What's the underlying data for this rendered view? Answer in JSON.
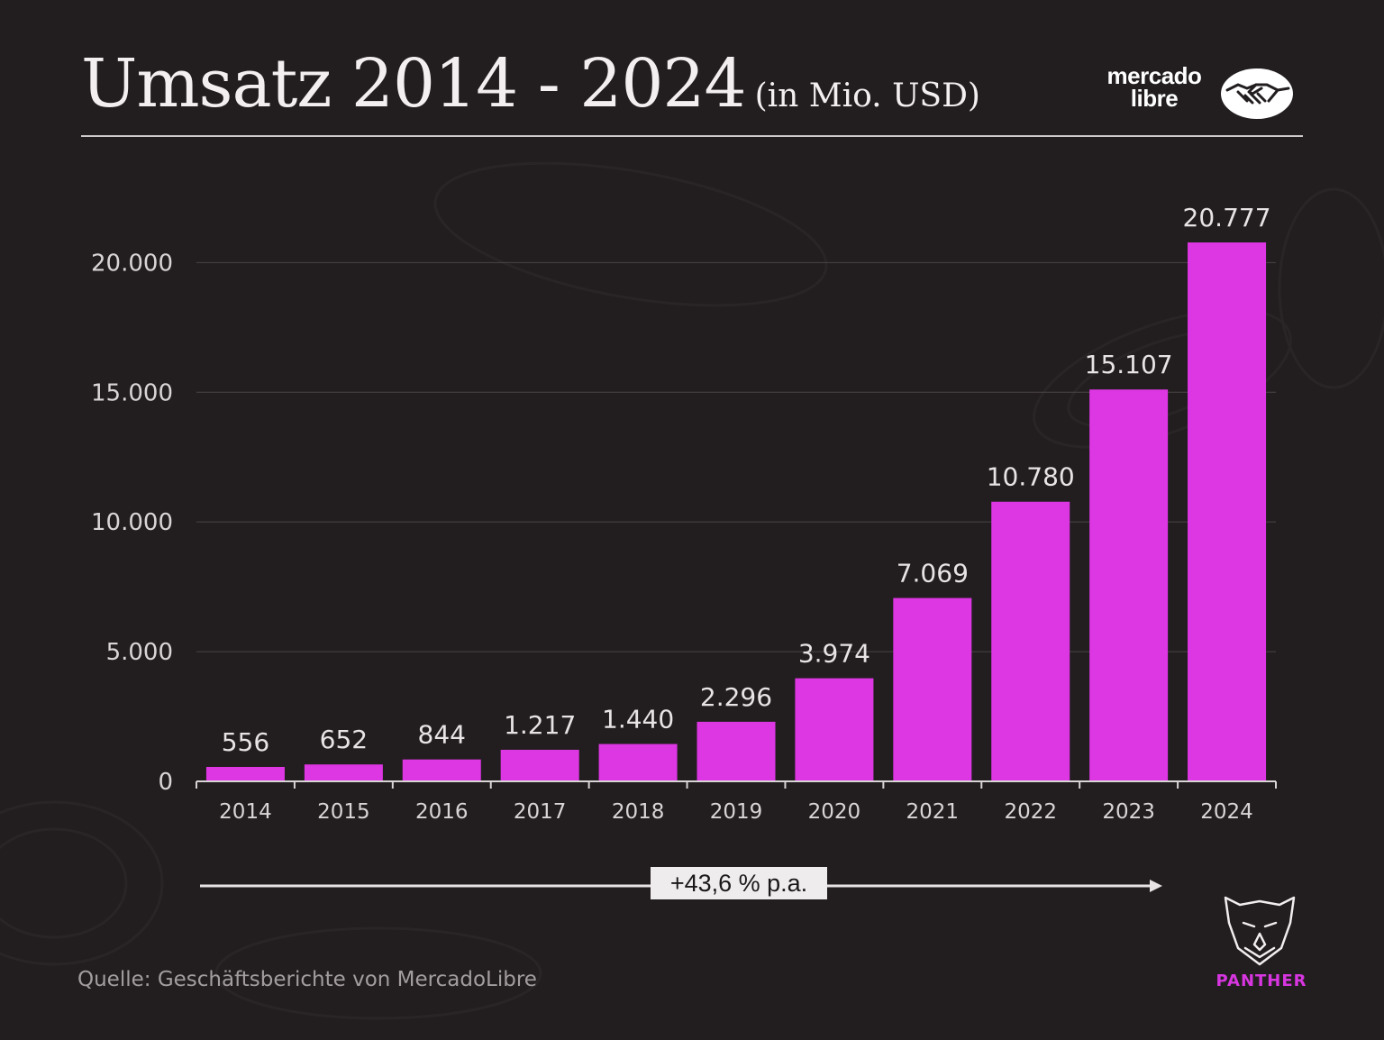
{
  "header": {
    "title": "Umsatz 2014 - 2024",
    "subtitle": "(in Mio. USD)"
  },
  "brand": {
    "line1": "mercado",
    "line2": "libre",
    "icon": "handshake-icon"
  },
  "colors": {
    "bar": "#dd36e3",
    "background": "#221e1f",
    "accent": "#d736e0"
  },
  "chart_data": {
    "type": "bar",
    "title": "Umsatz 2014 - 2024 (in Mio. USD)",
    "xlabel": "",
    "ylabel": "",
    "categories": [
      "2014",
      "2015",
      "2016",
      "2017",
      "2018",
      "2019",
      "2020",
      "2021",
      "2022",
      "2023",
      "2024"
    ],
    "values": [
      556,
      652,
      844,
      1217,
      1440,
      2296,
      3974,
      7069,
      10780,
      15107,
      20777
    ],
    "value_labels": [
      "556",
      "652",
      "844",
      "1.217",
      "1.440",
      "2.296",
      "3.974",
      "7.069",
      "10.780",
      "15.107",
      "20.777"
    ],
    "yticks": [
      0,
      5000,
      10000,
      15000,
      20000
    ],
    "ytick_labels": [
      "0",
      "5.000",
      "10.000",
      "15.000",
      "20.000"
    ],
    "ylim": [
      0,
      20777
    ],
    "grid": true,
    "annotation": "+43,6 % p.a."
  },
  "footer": {
    "source": "Quelle: Geschäftsberichte von MercadoLibre",
    "logo_text": "PANTHER",
    "logo_icon": "panther-head-icon"
  }
}
